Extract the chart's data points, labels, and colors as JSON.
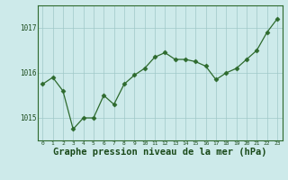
{
  "x": [
    0,
    1,
    2,
    3,
    4,
    5,
    6,
    7,
    8,
    9,
    10,
    11,
    12,
    13,
    14,
    15,
    16,
    17,
    18,
    19,
    20,
    21,
    22,
    23
  ],
  "y": [
    1015.75,
    1015.9,
    1015.6,
    1014.75,
    1015.0,
    1015.0,
    1015.5,
    1015.3,
    1015.75,
    1015.95,
    1016.1,
    1016.35,
    1016.45,
    1016.3,
    1016.3,
    1016.25,
    1016.15,
    1015.85,
    1016.0,
    1016.1,
    1016.3,
    1016.5,
    1016.9,
    1017.2
  ],
  "line_color": "#2d6a2d",
  "marker": "D",
  "marker_size": 2.5,
  "bg_color": "#cdeaea",
  "grid_color": "#a0c8c8",
  "xlabel": "Graphe pression niveau de la mer (hPa)",
  "xlabel_color": "#1a4a1a",
  "xlabel_fontsize": 7.5,
  "tick_color": "#1a4a1a",
  "ylim": [
    1014.5,
    1017.5
  ],
  "yticks": [
    1015,
    1016,
    1017
  ],
  "xlim": [
    -0.5,
    23.5
  ],
  "spine_color": "#2d6a2d"
}
